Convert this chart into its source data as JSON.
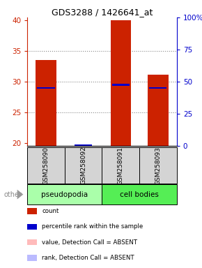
{
  "title": "GDS3288 / 1426641_at",
  "samples": [
    "GSM258090",
    "GSM258092",
    "GSM258091",
    "GSM258093"
  ],
  "count_values": [
    33.5,
    19.5,
    40.0,
    31.2
  ],
  "rank_values": [
    29.0,
    19.6,
    29.5,
    29.0
  ],
  "ylim_left": [
    19.5,
    40.5
  ],
  "yticks_left": [
    20,
    25,
    30,
    35,
    40
  ],
  "yticks_right": [
    0,
    25,
    50,
    75,
    100
  ],
  "ytick_labels_right": [
    "0",
    "25",
    "50",
    "75",
    "100%"
  ],
  "left_color": "#cc2200",
  "right_color": "#0000cc",
  "pseudo_color": "#aaffaa",
  "cell_color": "#55ee55",
  "sample_box_color": "#d4d4d4",
  "bar_width": 0.55,
  "rank_bar_height": 0.25,
  "legend_items": [
    {
      "color": "#cc2200",
      "label": "count"
    },
    {
      "color": "#0000cc",
      "label": "percentile rank within the sample"
    },
    {
      "color": "#ffbbbb",
      "label": "value, Detection Call = ABSENT"
    },
    {
      "color": "#bbbbff",
      "label": "rank, Detection Call = ABSENT"
    }
  ]
}
